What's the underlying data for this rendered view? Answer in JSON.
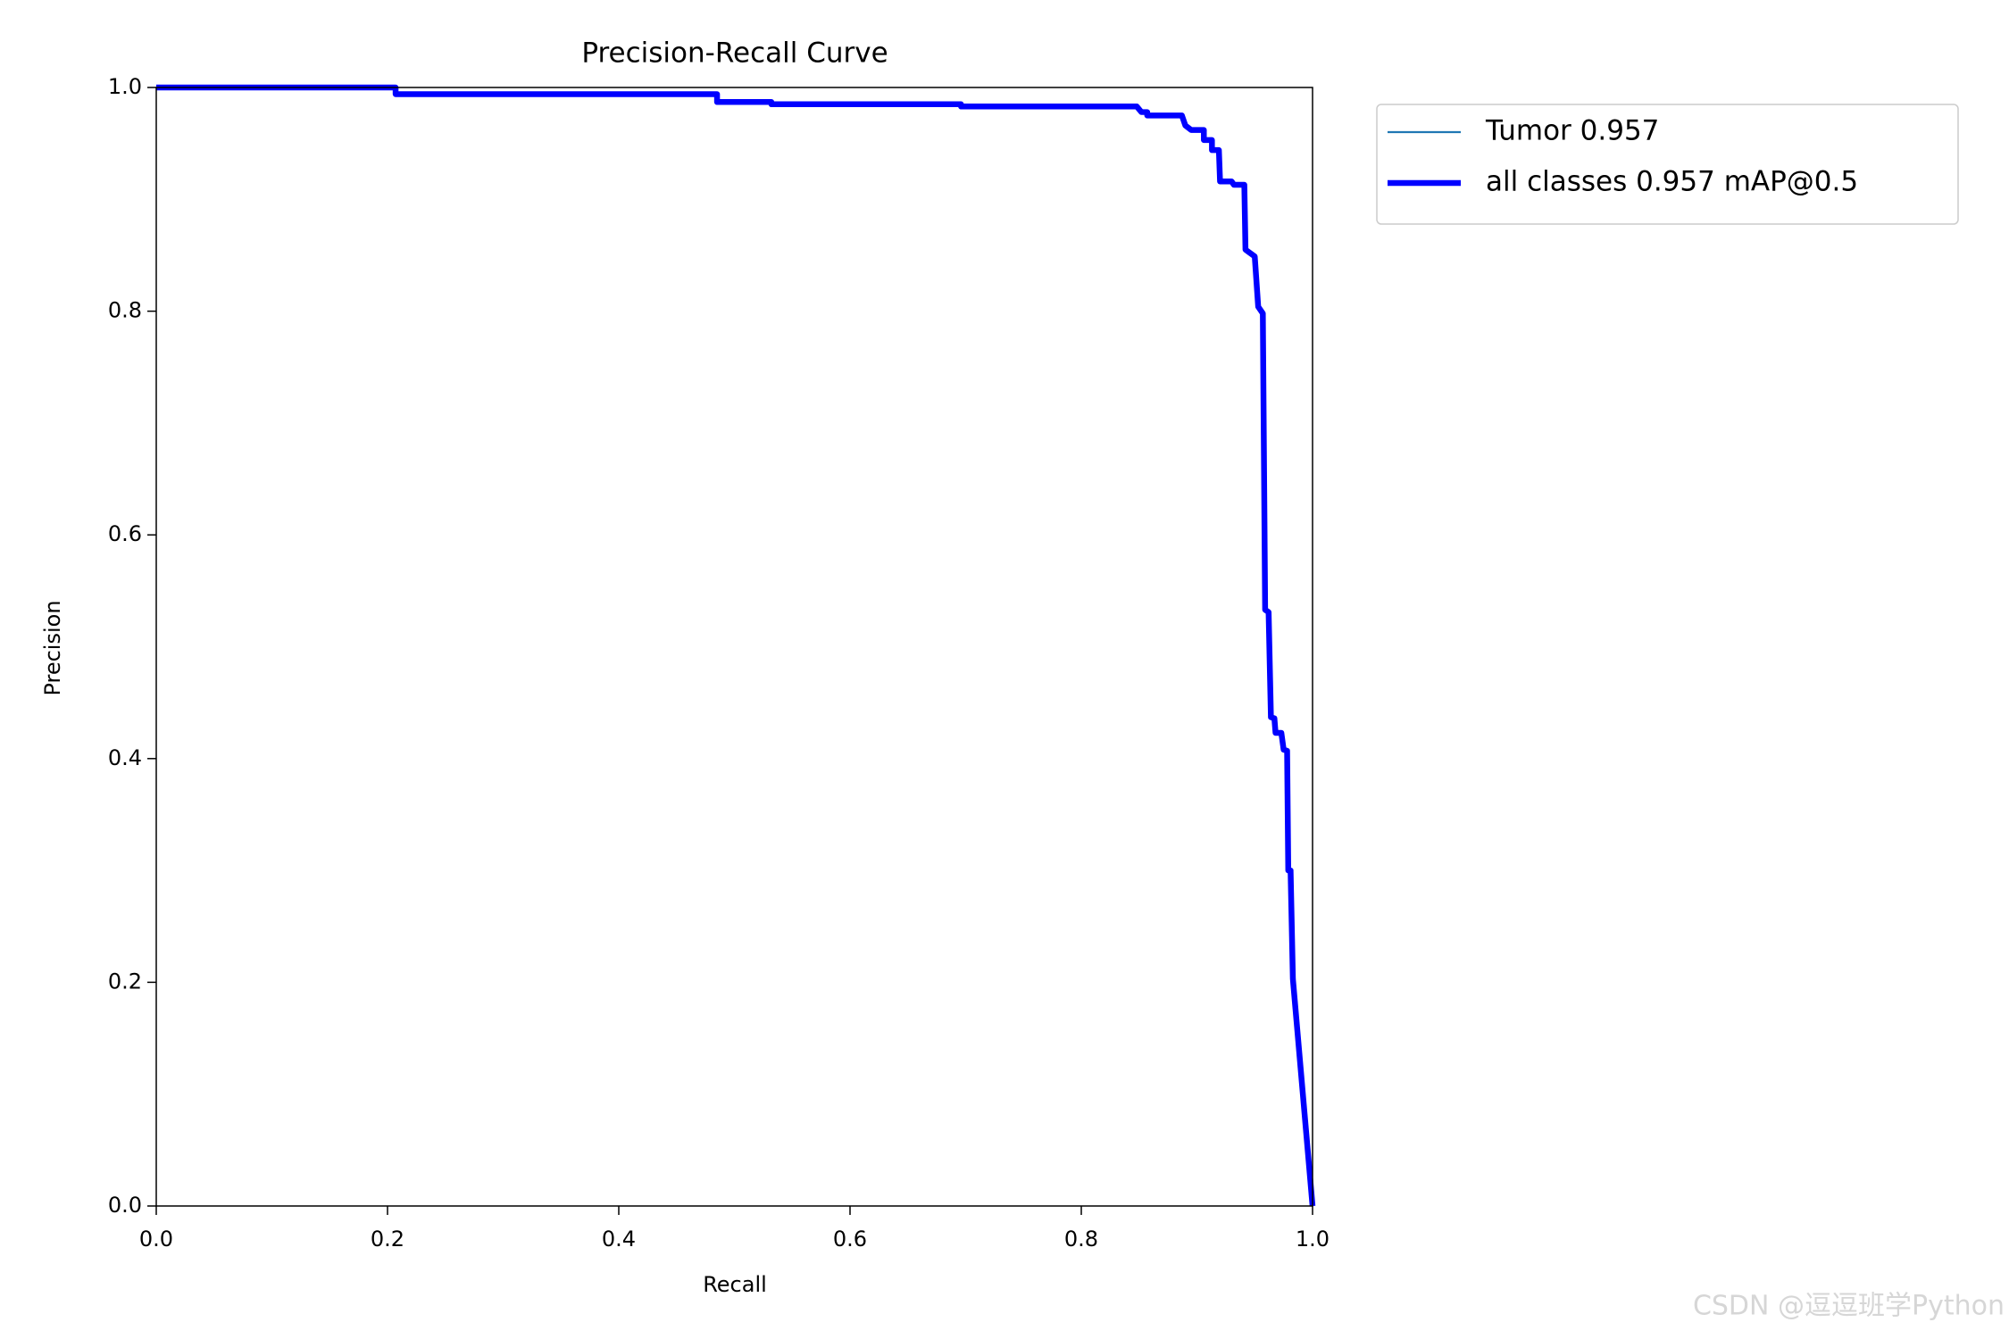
{
  "chart_data": {
    "type": "line",
    "title": "Precision-Recall Curve",
    "x_label": "Recall",
    "y_label": "Precision",
    "x": [
      0,
      0.207,
      0.207,
      0.485,
      0.485,
      0.532,
      0.532,
      0.696,
      0.696,
      0.848,
      0.852,
      0.857,
      0.857,
      0.887,
      0.89,
      0.895,
      0.906,
      0.906,
      0.913,
      0.913,
      0.919,
      0.92,
      0.93,
      0.932,
      0.941,
      0.942,
      0.95,
      0.953,
      0.957,
      0.959,
      0.962,
      0.964,
      0.967,
      0.968,
      0.973,
      0.975,
      0.978,
      0.979,
      0.981,
      0.983,
      1.0
    ],
    "series": [
      {
        "name": "Tumor 0.957",
        "color": "#1f77b4",
        "width": 1,
        "values": [
          1,
          1,
          0.994,
          0.994,
          0.987,
          0.987,
          0.985,
          0.985,
          0.983,
          0.983,
          0.978,
          0.978,
          0.975,
          0.975,
          0.966,
          0.962,
          0.962,
          0.953,
          0.953,
          0.944,
          0.944,
          0.916,
          0.916,
          0.913,
          0.913,
          0.855,
          0.849,
          0.804,
          0.798,
          0.533,
          0.531,
          0.437,
          0.436,
          0.423,
          0.423,
          0.408,
          0.407,
          0.3,
          0.3,
          0.203,
          0
        ]
      },
      {
        "name": "all classes 0.957 mAP@0.5",
        "color": "#0000ff",
        "width": 3,
        "values": [
          1,
          1,
          0.994,
          0.994,
          0.987,
          0.987,
          0.985,
          0.985,
          0.983,
          0.983,
          0.978,
          0.978,
          0.975,
          0.975,
          0.966,
          0.962,
          0.962,
          0.953,
          0.953,
          0.944,
          0.944,
          0.916,
          0.916,
          0.913,
          0.913,
          0.855,
          0.849,
          0.804,
          0.798,
          0.533,
          0.531,
          0.437,
          0.436,
          0.423,
          0.423,
          0.408,
          0.407,
          0.3,
          0.3,
          0.203,
          0
        ]
      }
    ],
    "xlim": [
      0,
      1
    ],
    "ylim": [
      0,
      1
    ],
    "xticks": [
      {
        "value": 0,
        "label": "0.0"
      },
      0.2,
      0.4,
      0.6,
      0.8,
      {
        "value": 1,
        "label": "1.0"
      }
    ],
    "yticks": [
      {
        "value": 0,
        "label": "0.0"
      },
      0.2,
      0.4,
      0.6,
      0.8,
      {
        "value": 1,
        "label": "1.0"
      }
    ],
    "grid": false,
    "legend": "outside upper right",
    "watermark": "CSDN @逗逗班学Python"
  }
}
